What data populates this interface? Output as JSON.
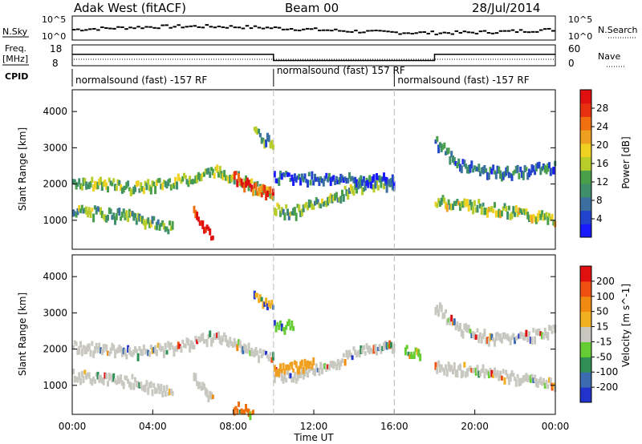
{
  "header": {
    "radar": "Adak West (fitACF)",
    "beam": "Beam 00",
    "date": "28/Jul/2014"
  },
  "chart_data": [
    {
      "type": "line",
      "panel": "noise",
      "left_label": "N.Sky",
      "left_ticks": [
        "10^5",
        "10^0"
      ],
      "right_label": "N.Search",
      "right_ticks": [
        "10^5",
        "10^0"
      ],
      "scale": "log"
    },
    {
      "type": "line",
      "panel": "frequency",
      "left_label": "Freq.",
      "left_unit": "[MHz]",
      "left_ticks": [
        "18",
        "8"
      ],
      "right_label": "Nave",
      "right_ticks": [
        "60",
        "0"
      ],
      "series": [
        {
          "name": "Freq.",
          "points": [
            [
              0,
              13.5
            ],
            [
              10,
              13.5
            ],
            [
              10,
              10.5
            ],
            [
              18,
              10.5
            ],
            [
              18,
              13.5
            ],
            [
              24,
              13.5
            ]
          ]
        }
      ]
    },
    {
      "type": "table",
      "panel": "cpid",
      "label": "CPID",
      "segments": [
        {
          "start_h": 0,
          "text": "normalsound (fast) -157 RF"
        },
        {
          "start_h": 10,
          "text": "normalsound (fast) 157 RF"
        },
        {
          "start_h": 16,
          "text": "normalsound (fast) -157 RF"
        }
      ]
    },
    {
      "type": "heatmap",
      "panel": "power",
      "ylabel": "Slant Range [km]",
      "yticks": [
        "1000",
        "2000",
        "3000",
        "4000"
      ],
      "ylim": [
        200,
        4600
      ],
      "xlim": [
        0,
        24
      ],
      "colorbar": {
        "label": "Power [dB]",
        "ticks": [
          "4",
          "8",
          "12",
          "16",
          "20",
          "24",
          "28"
        ],
        "colors": [
          "#1a1aff",
          "#2244cc",
          "#3a6fa0",
          "#3f8f6a",
          "#4aa04a",
          "#b8cc2a",
          "#f0d020",
          "#f0a020",
          "#f07010",
          "#e83010",
          "#e01010"
        ]
      },
      "bands": [
        {
          "points": [
            [
              0,
              2050
            ],
            [
              1,
              2000
            ],
            [
              2,
              1950
            ],
            [
              3,
              1880
            ],
            [
              4,
              1950
            ],
            [
              5,
              2050
            ],
            [
              6,
              2150
            ],
            [
              7,
              2350
            ],
            [
              8,
              2200
            ],
            [
              9,
              1900
            ],
            [
              10,
              1700
            ]
          ],
          "level": 0.45
        },
        {
          "points": [
            [
              0,
              1250
            ],
            [
              1,
              1200
            ],
            [
              2,
              1150
            ],
            [
              3,
              1100
            ],
            [
              4,
              900
            ],
            [
              5,
              750
            ]
          ],
          "level": 0.4
        },
        {
          "points": [
            [
              6,
              1200
            ],
            [
              7,
              500
            ]
          ],
          "level": 0.95
        },
        {
          "points": [
            [
              8,
              2200
            ],
            [
              9,
              1850
            ],
            [
              10,
              1700
            ]
          ],
          "level": 0.85
        },
        {
          "points": [
            [
              10,
              1300
            ],
            [
              11,
              1200
            ],
            [
              12,
              1450
            ],
            [
              13,
              1600
            ],
            [
              14,
              1900
            ],
            [
              15,
              2000
            ],
            [
              16,
              2050
            ]
          ],
          "level": 0.4
        },
        {
          "points": [
            [
              10,
              2150
            ],
            [
              12,
              2150
            ],
            [
              14,
              2100
            ],
            [
              16,
              2100
            ]
          ],
          "level": 0.2
        },
        {
          "points": [
            [
              18,
              3200
            ],
            [
              19,
              2600
            ],
            [
              20,
              2400
            ],
            [
              21,
              2300
            ],
            [
              22,
              2300
            ],
            [
              23,
              2400
            ],
            [
              24,
              2500
            ]
          ],
          "level": 0.25
        },
        {
          "points": [
            [
              18,
              1500
            ],
            [
              20,
              1400
            ],
            [
              22,
              1200
            ],
            [
              24,
              1000
            ]
          ],
          "level": 0.5
        },
        {
          "points": [
            [
              9,
              3400
            ],
            [
              10,
              3100
            ]
          ],
          "level": 0.35
        }
      ]
    },
    {
      "type": "heatmap",
      "panel": "velocity",
      "ylabel": "Slant Range [km]",
      "yticks": [
        "1000",
        "2000",
        "3000",
        "4000"
      ],
      "ylim": [
        200,
        4600
      ],
      "xlim": [
        0,
        24
      ],
      "xticks": [
        "00:00",
        "04:00",
        "08:00",
        "12:00",
        "16:00",
        "20:00",
        "00:00"
      ],
      "xlabel": "Time UT",
      "colorbar": {
        "label": "Velocity [m s^-1]",
        "ticks": [
          "200",
          "100",
          "50",
          "15",
          "-15",
          "-50",
          "-100",
          "-200"
        ],
        "colors": [
          "#2233cc",
          "#3b6bb0",
          "#2f8f55",
          "#66cc33",
          "#c8c8c0",
          "#f0b020",
          "#f08a10",
          "#f05010",
          "#e01010"
        ]
      },
      "bands": [
        {
          "points": [
            [
              0,
              2050
            ],
            [
              1,
              2000
            ],
            [
              2,
              1950
            ],
            [
              3,
              1880
            ],
            [
              4,
              1950
            ],
            [
              5,
              2050
            ],
            [
              6,
              2150
            ],
            [
              7,
              2350
            ],
            [
              8,
              2200
            ],
            [
              9,
              1900
            ],
            [
              10,
              1700
            ]
          ],
          "color": "#c8c8c0"
        },
        {
          "points": [
            [
              0,
              1250
            ],
            [
              1,
              1200
            ],
            [
              2,
              1150
            ],
            [
              3,
              1100
            ],
            [
              4,
              900
            ],
            [
              5,
              750
            ]
          ],
          "color": "#c8c8c0"
        },
        {
          "points": [
            [
              6,
              1200
            ],
            [
              7,
              500
            ]
          ],
          "color": "#c8c8c0"
        },
        {
          "points": [
            [
              10,
              1300
            ],
            [
              11,
              1200
            ],
            [
              12,
              1450
            ],
            [
              13,
              1600
            ],
            [
              14,
              1900
            ],
            [
              15,
              2000
            ],
            [
              16,
              2050
            ]
          ],
          "color": "#c8c8c0"
        },
        {
          "points": [
            [
              10,
              1400
            ],
            [
              11,
              1500
            ],
            [
              12,
              1600
            ]
          ],
          "color": "#f0a020"
        },
        {
          "points": [
            [
              9,
              3400
            ],
            [
              10,
              3200
            ]
          ],
          "color": "#f0b020"
        },
        {
          "points": [
            [
              10,
              2600
            ],
            [
              11,
              2650
            ]
          ],
          "color": "#66cc33"
        },
        {
          "points": [
            [
              16.5,
              1900
            ],
            [
              17.3,
              1850
            ]
          ],
          "color": "#66cc33"
        },
        {
          "points": [
            [
              18,
              3200
            ],
            [
              19,
              2600
            ],
            [
              20,
              2400
            ],
            [
              21,
              2300
            ],
            [
              22,
              2300
            ],
            [
              23,
              2400
            ],
            [
              24,
              2500
            ]
          ],
          "color": "#c8c8c0"
        },
        {
          "points": [
            [
              18,
              1500
            ],
            [
              20,
              1400
            ],
            [
              22,
              1200
            ],
            [
              24,
              1000
            ]
          ],
          "color": "#c8c8c0"
        },
        {
          "points": [
            [
              8,
              400
            ],
            [
              9,
              300
            ]
          ],
          "color": "#f07010"
        }
      ]
    }
  ]
}
